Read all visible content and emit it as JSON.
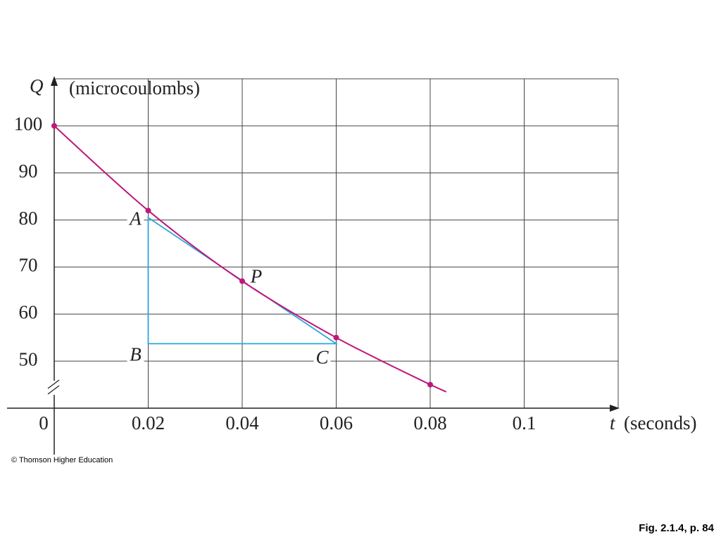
{
  "chart_data": {
    "type": "line",
    "y_label_symbol": "Q",
    "y_label": "(microcoulombs)",
    "x_label_symbol": "t",
    "x_label": "(seconds)",
    "x": [
      0,
      0.02,
      0.04,
      0.06,
      0.08
    ],
    "series": [
      {
        "name": "Q",
        "color": "#c0177a",
        "values": [
          100,
          82,
          67,
          55,
          45
        ]
      }
    ],
    "xlim": [
      0,
      0.12
    ],
    "ylim": [
      40,
      110
    ],
    "xticks": [
      0,
      0.02,
      0.04,
      0.06,
      0.08,
      0.1
    ],
    "yticks": [
      50,
      60,
      70,
      80,
      90,
      100
    ],
    "grid": true,
    "triangle": {
      "color": "#2aa8de",
      "x": [
        0.02,
        0.02,
        0.06
      ],
      "y": [
        80.5,
        53.7,
        53.7
      ]
    },
    "annotations": [
      {
        "label": "A",
        "x": 0.02,
        "y": 80.5
      },
      {
        "label": "P",
        "x": 0.04,
        "y": 67
      },
      {
        "label": "B",
        "x": 0.02,
        "y": 53.7
      },
      {
        "label": "C",
        "x": 0.06,
        "y": 53.7
      }
    ],
    "credit": "© Thomson Higher Education",
    "caption": "Fig. 2.1.4, p. 84"
  }
}
